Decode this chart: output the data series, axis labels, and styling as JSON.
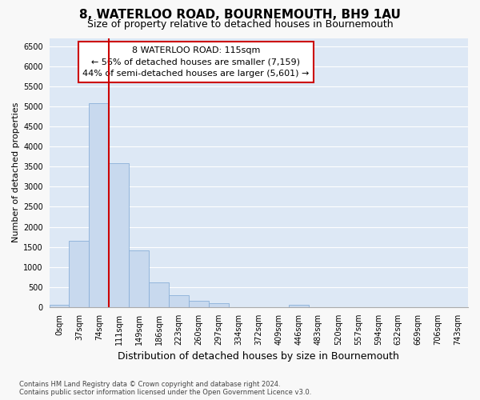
{
  "title": "8, WATERLOO ROAD, BOURNEMOUTH, BH9 1AU",
  "subtitle": "Size of property relative to detached houses in Bournemouth",
  "xlabel": "Distribution of detached houses by size in Bournemouth",
  "ylabel": "Number of detached properties",
  "footnote1": "Contains HM Land Registry data © Crown copyright and database right 2024.",
  "footnote2": "Contains public sector information licensed under the Open Government Licence v3.0.",
  "bar_labels": [
    "0sqm",
    "37sqm",
    "74sqm",
    "111sqm",
    "149sqm",
    "186sqm",
    "223sqm",
    "260sqm",
    "297sqm",
    "334sqm",
    "372sqm",
    "409sqm",
    "446sqm",
    "483sqm",
    "520sqm",
    "557sqm",
    "594sqm",
    "632sqm",
    "669sqm",
    "706sqm",
    "743sqm"
  ],
  "bar_values": [
    60,
    1650,
    5080,
    3580,
    1420,
    620,
    300,
    155,
    100,
    0,
    0,
    0,
    60,
    0,
    0,
    0,
    0,
    0,
    0,
    0,
    0
  ],
  "bar_color": "#c8d9ee",
  "bar_edgecolor": "#8ab0d8",
  "highlight_index": 3,
  "highlight_line_color": "#cc0000",
  "annotation_box_edgecolor": "#cc0000",
  "plot_bg_color": "#dde8f5",
  "fig_bg_color": "#f8f8f8",
  "grid_color": "#ffffff",
  "annotation_title": "8 WATERLOO ROAD: 115sqm",
  "annotation_line1": "← 56% of detached houses are smaller (7,159)",
  "annotation_line2": "44% of semi-detached houses are larger (5,601) →",
  "ylim": [
    0,
    6700
  ],
  "yticks": [
    0,
    500,
    1000,
    1500,
    2000,
    2500,
    3000,
    3500,
    4000,
    4500,
    5000,
    5500,
    6000,
    6500
  ],
  "title_fontsize": 11,
  "subtitle_fontsize": 9,
  "ylabel_fontsize": 8,
  "xlabel_fontsize": 9,
  "tick_fontsize": 7,
  "annotation_fontsize": 8
}
